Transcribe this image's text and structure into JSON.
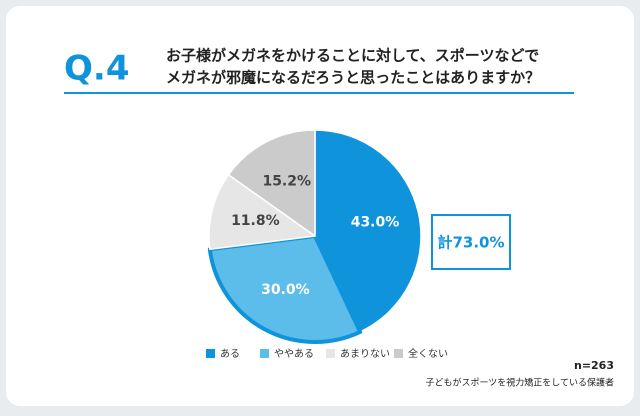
{
  "chart_data": {
    "type": "pie",
    "question": "Q.4",
    "title_lines": [
      "お子様がメガネをかけることに対して、スポーツなどで",
      "メガネが邪魔になるだろうと思ったことはありますか？"
    ],
    "categories": [
      "ある",
      "ややある",
      "あまりない",
      "全くない"
    ],
    "values": [
      43.0,
      30.0,
      11.8,
      15.2
    ],
    "value_labels": [
      "43.0%",
      "30.0%",
      "11.8%",
      "15.2%"
    ],
    "colors": [
      "#0f94dc",
      "#5dbdea",
      "#e6e6e6",
      "#cbcbcb"
    ],
    "annotation": "計73.0%",
    "sample_size": "n=263",
    "note": "子どもがスポーツを視力矯正をしている保護者"
  }
}
